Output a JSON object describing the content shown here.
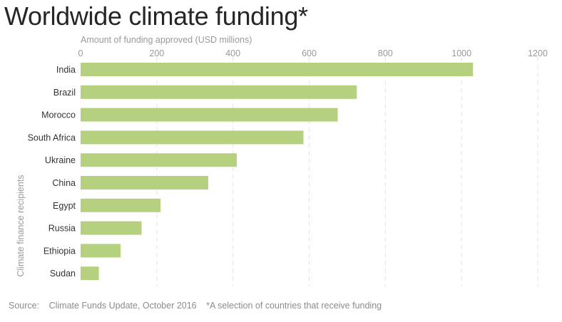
{
  "title": "Worldwide climate funding*",
  "footer": {
    "source_label": "Source:",
    "source_text": "Climate Funds Update, October 2016",
    "note": "*A selection of countries that receive funding"
  },
  "colors": {
    "bar": "#b5d17f",
    "grid": "#e3e3e3",
    "axis_text": "#9a9a9a",
    "label_text": "#333333"
  },
  "chart_data": {
    "type": "bar",
    "orientation": "horizontal",
    "xlabel": "Amount of funding approved (USD millions)",
    "ylabel": "Climate finance recipients",
    "xlim": [
      0,
      1200
    ],
    "xticks": [
      0,
      200,
      400,
      600,
      800,
      1000,
      1200
    ],
    "grid": true,
    "categories": [
      "India",
      "Brazil",
      "Morocco",
      "South Africa",
      "Ukraine",
      "China",
      "Egypt",
      "Russia",
      "Ethiopia",
      "Sudan"
    ],
    "values": [
      1030,
      725,
      675,
      585,
      410,
      335,
      210,
      160,
      105,
      48
    ]
  }
}
